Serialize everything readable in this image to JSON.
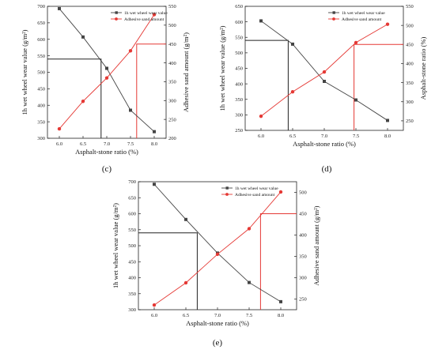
{
  "chart_data": [
    {
      "id": "c",
      "panel_label": "(c)",
      "type": "line",
      "xlabel": "Asphalt-stone ratio (%)",
      "ylabel_left": "1h wet wheel wear value (g/m²)",
      "ylabel_right": "Adhesive sand amount (g/m²)",
      "x": [
        6.0,
        6.5,
        7.0,
        7.5,
        8.0
      ],
      "xlim": [
        5.75,
        8.25
      ],
      "ylim_left": [
        300,
        700
      ],
      "ylim_right": [
        200,
        550
      ],
      "xticks": [
        6.0,
        6.5,
        7.0,
        7.5,
        8.0
      ],
      "xtick_labels": [
        "6.0",
        "6.5",
        "7.0",
        "7.5",
        "8.0"
      ],
      "yticks_left": [
        300,
        350,
        400,
        450,
        500,
        550,
        600,
        650,
        700
      ],
      "yticks_right": [
        200,
        250,
        300,
        350,
        400,
        450,
        500,
        550
      ],
      "series": [
        {
          "name": "1h wet wheel wear value",
          "axis": "left",
          "color": "#444444",
          "marker": "square",
          "values": [
            693,
            607,
            512,
            385,
            320
          ]
        },
        {
          "name": "Adhesive sand amount",
          "axis": "right",
          "color": "#e53935",
          "marker": "circle",
          "values": [
            225,
            298,
            360,
            432,
            528
          ]
        }
      ],
      "reference_lines": [
        {
          "axis": "left",
          "y": 540,
          "x_end": 6.88,
          "color": "#222222"
        },
        {
          "axis": "right",
          "y": 450,
          "x_start": 7.63,
          "color": "#e53935"
        }
      ]
    },
    {
      "id": "d",
      "panel_label": "(d)",
      "type": "line",
      "xlabel": "Asphalt-stone ratio (%)",
      "ylabel_left": "1h wet wheel wear value (g/m²)",
      "ylabel_right": "Asphalt-stone ratio (%)",
      "x": [
        6.0,
        6.5,
        7.0,
        7.5,
        8.0
      ],
      "xlim": [
        5.75,
        8.25
      ],
      "ylim_left": [
        250,
        650
      ],
      "ylim_right": [
        225,
        550
      ],
      "xticks": [
        6.0,
        6.5,
        7.0,
        7.5,
        8.0
      ],
      "xtick_labels": [
        "6.0",
        "6.5",
        "7.0",
        "7.5",
        "8.0"
      ],
      "yticks_left": [
        250,
        300,
        350,
        400,
        450,
        500,
        550,
        600,
        650
      ],
      "yticks_right": [
        250,
        300,
        350,
        400,
        450,
        500,
        550
      ],
      "series": [
        {
          "name": "1h wet wheel wear value",
          "axis": "left",
          "color": "#444444",
          "marker": "square",
          "values": [
            603,
            528,
            408,
            348,
            282
          ]
        },
        {
          "name": "Adhesive sand amount",
          "axis": "right",
          "color": "#e53935",
          "marker": "circle",
          "values": [
            262,
            326,
            378,
            455,
            503
          ]
        }
      ],
      "reference_lines": [
        {
          "axis": "left",
          "y": 540,
          "x_end": 6.43,
          "color": "#222222"
        },
        {
          "axis": "right",
          "y": 450,
          "x_start": 7.47,
          "color": "#e53935"
        }
      ]
    },
    {
      "id": "e",
      "panel_label": "(e)",
      "type": "line",
      "xlabel": "Asphalt-stone ratio (%)",
      "ylabel_left": "1h wet wheel wear value (g/m²)",
      "ylabel_right": "Adhesive sand amount (g/m²)",
      "x": [
        6.0,
        6.5,
        7.0,
        7.5,
        8.0
      ],
      "xlim": [
        5.75,
        8.25
      ],
      "ylim_left": [
        300,
        700
      ],
      "ylim_right": [
        225,
        525
      ],
      "xticks": [
        6.0,
        6.5,
        7.0,
        7.5,
        8.0
      ],
      "xtick_labels": [
        "6.0",
        "6.5",
        "7.0",
        "7.5",
        "8.0"
      ],
      "yticks_left": [
        300,
        350,
        400,
        450,
        500,
        550,
        600,
        650,
        700
      ],
      "yticks_right": [
        250,
        300,
        350,
        400,
        450,
        500
      ],
      "series": [
        {
          "name": "1h wet wheel wear value",
          "axis": "left",
          "color": "#444444",
          "marker": "square",
          "values": [
            692,
            582,
            477,
            385,
            325
          ]
        },
        {
          "name": "Adhesive sand amount",
          "axis": "right",
          "color": "#e53935",
          "marker": "circle",
          "values": [
            236,
            288,
            355,
            415,
            501
          ]
        }
      ],
      "reference_lines": [
        {
          "axis": "left",
          "y": 540,
          "x_end": 6.68,
          "color": "#222222"
        },
        {
          "axis": "right",
          "y": 450,
          "x_start": 7.68,
          "color": "#e53935"
        }
      ]
    }
  ]
}
